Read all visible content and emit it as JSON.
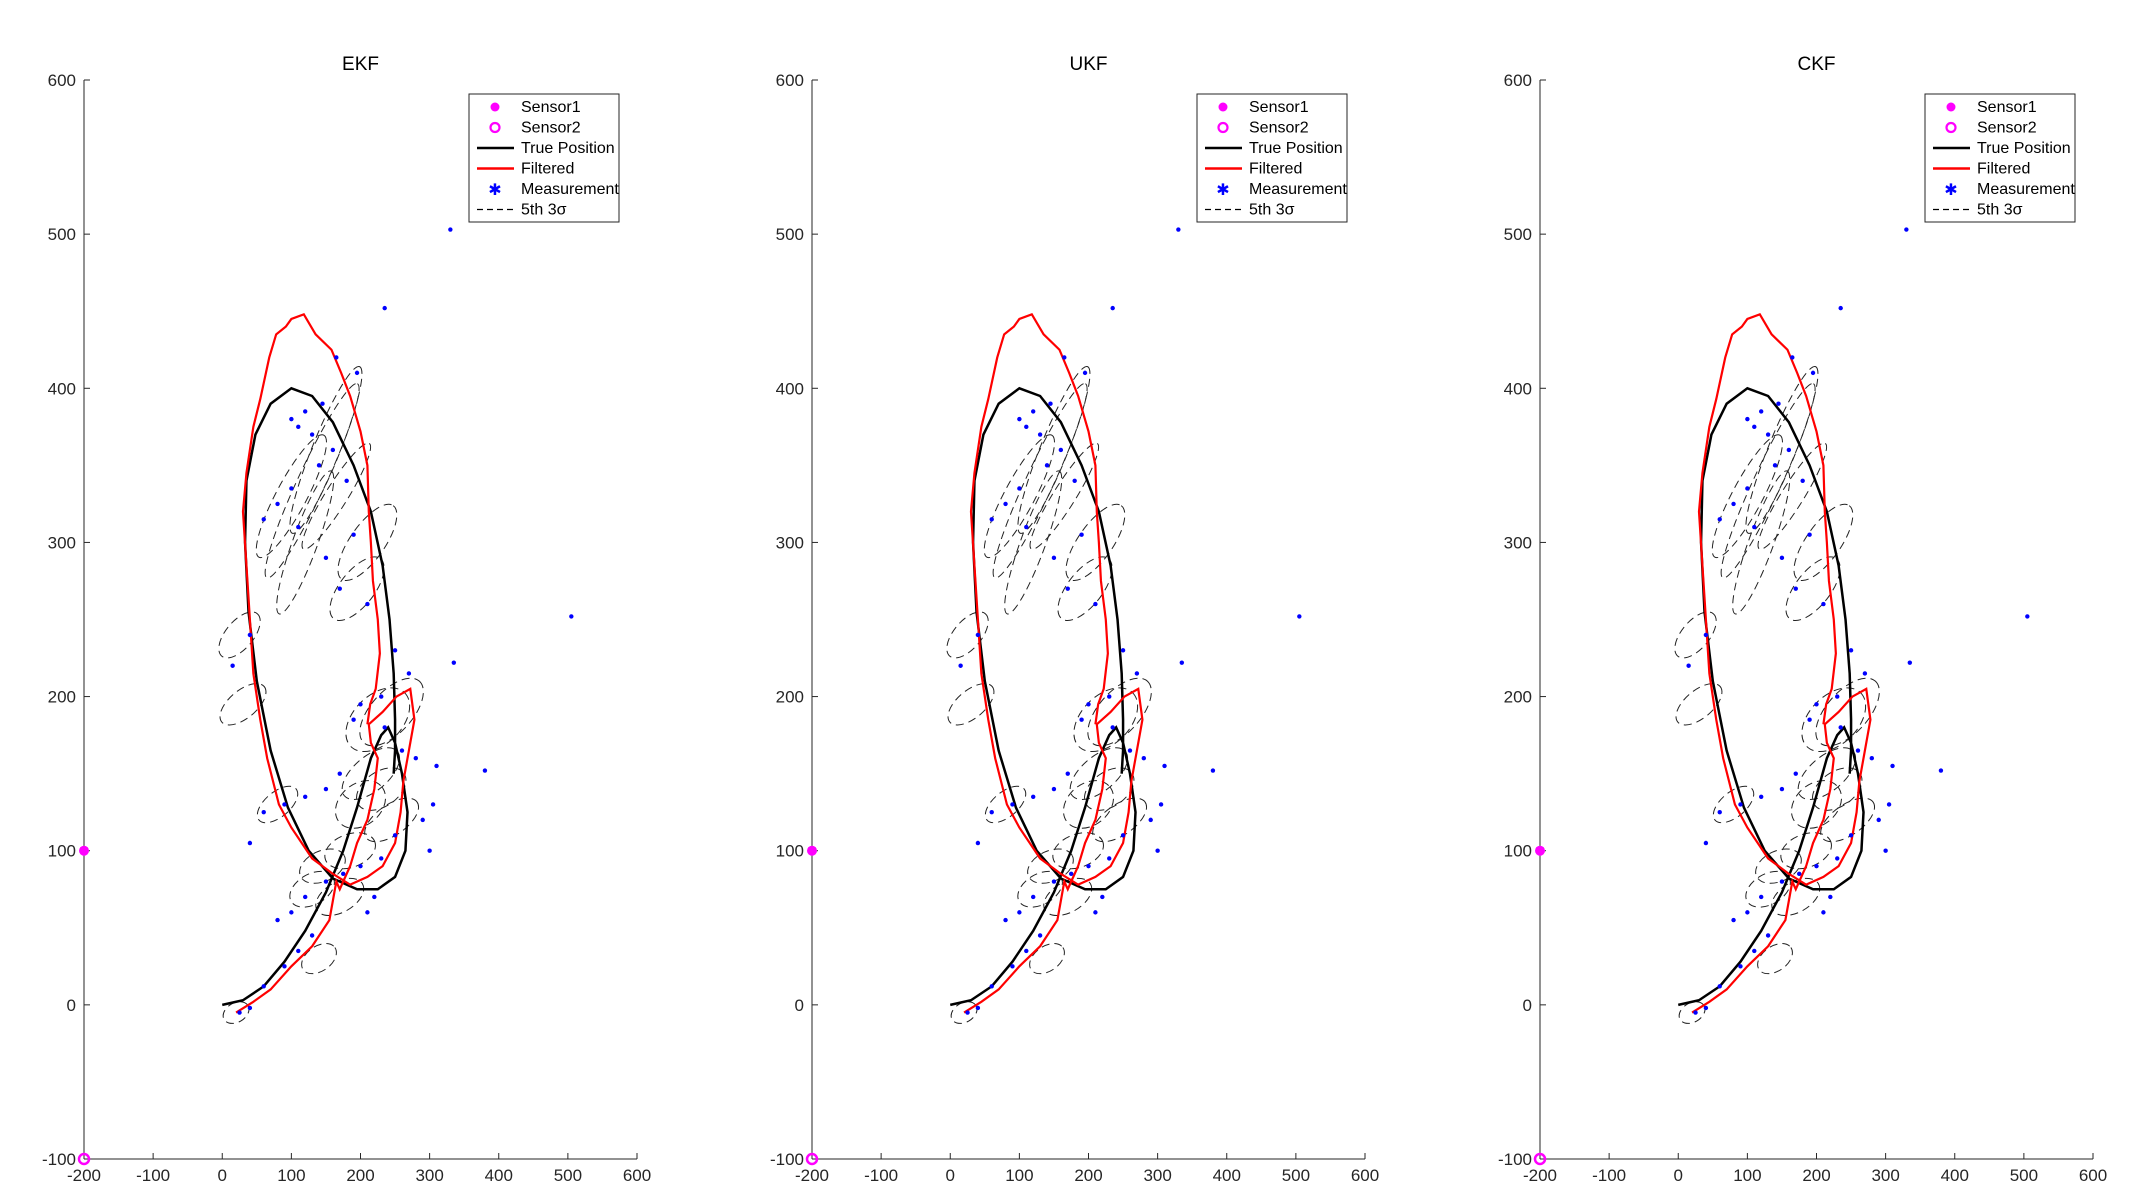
{
  "chart_data": [
    {
      "type": "line",
      "title": "EKF",
      "xlim": [
        -200,
        600
      ],
      "ylim": [
        -100,
        600
      ],
      "xticks": [
        -200,
        -100,
        0,
        100,
        200,
        300,
        400,
        500,
        600
      ],
      "yticks": [
        -100,
        0,
        100,
        200,
        300,
        400,
        500,
        600
      ],
      "legend_position": "top-right"
    },
    {
      "type": "line",
      "title": "UKF",
      "xlim": [
        -200,
        600
      ],
      "ylim": [
        -100,
        600
      ],
      "xticks": [
        -200,
        -100,
        0,
        100,
        200,
        300,
        400,
        500,
        600
      ],
      "yticks": [
        -100,
        0,
        100,
        200,
        300,
        400,
        500,
        600
      ],
      "legend_position": "top-right"
    },
    {
      "type": "line",
      "title": "CKF",
      "xlim": [
        -200,
        600
      ],
      "ylim": [
        -100,
        600
      ],
      "xticks": [
        -200,
        -100,
        0,
        100,
        200,
        300,
        400,
        500,
        600
      ],
      "yticks": [
        -100,
        0,
        100,
        200,
        300,
        400,
        500,
        600
      ],
      "legend_position": "top-right"
    }
  ],
  "legend": [
    {
      "label": "Sensor1",
      "marker": "filled-circle",
      "color": "#ff00ff"
    },
    {
      "label": "Sensor2",
      "marker": "open-circle",
      "color": "#ff00ff"
    },
    {
      "label": "True Position",
      "marker": "line",
      "color": "#000000"
    },
    {
      "label": "Filtered",
      "marker": "line",
      "color": "#ff0000"
    },
    {
      "label": "Measurement",
      "marker": "asterisk",
      "color": "#0000ff"
    },
    {
      "label": "5th 3σ",
      "marker": "dashed-line",
      "color": "#000000"
    }
  ],
  "sensors": {
    "sensor1": {
      "x": -200,
      "y": 100
    },
    "sensor2": {
      "x": -200,
      "y": -100
    }
  },
  "true_path": [
    [
      0,
      0
    ],
    [
      30,
      3
    ],
    [
      60,
      12
    ],
    [
      90,
      28
    ],
    [
      120,
      48
    ],
    [
      150,
      73
    ],
    [
      175,
      100
    ],
    [
      195,
      128
    ],
    [
      215,
      160
    ],
    [
      230,
      175
    ],
    [
      240,
      180
    ],
    [
      250,
      170
    ],
    [
      260,
      150
    ],
    [
      268,
      125
    ],
    [
      265,
      100
    ],
    [
      250,
      83
    ],
    [
      225,
      75
    ],
    [
      195,
      75
    ],
    [
      160,
      82
    ],
    [
      125,
      100
    ],
    [
      95,
      128
    ],
    [
      70,
      165
    ],
    [
      50,
      210
    ],
    [
      38,
      255
    ],
    [
      33,
      300
    ],
    [
      35,
      340
    ],
    [
      48,
      370
    ],
    [
      70,
      390
    ],
    [
      100,
      400
    ],
    [
      130,
      395
    ],
    [
      160,
      378
    ],
    [
      190,
      350
    ],
    [
      215,
      320
    ],
    [
      232,
      285
    ],
    [
      242,
      250
    ],
    [
      248,
      215
    ],
    [
      250,
      185
    ],
    [
      250,
      165
    ],
    [
      248,
      150
    ]
  ],
  "filtered_path": [
    [
      20,
      -5
    ],
    [
      45,
      2
    ],
    [
      70,
      10
    ],
    [
      100,
      25
    ],
    [
      130,
      38
    ],
    [
      155,
      55
    ],
    [
      165,
      80
    ],
    [
      170,
      75
    ],
    [
      185,
      90
    ],
    [
      195,
      105
    ],
    [
      210,
      120
    ],
    [
      220,
      140
    ],
    [
      225,
      160
    ],
    [
      215,
      170
    ],
    [
      212,
      182
    ],
    [
      232,
      190
    ],
    [
      252,
      200
    ],
    [
      272,
      205
    ],
    [
      278,
      185
    ],
    [
      270,
      165
    ],
    [
      262,
      145
    ],
    [
      258,
      125
    ],
    [
      250,
      105
    ],
    [
      232,
      90
    ],
    [
      210,
      83
    ],
    [
      185,
      78
    ],
    [
      160,
      85
    ],
    [
      130,
      95
    ],
    [
      100,
      115
    ],
    [
      82,
      130
    ],
    [
      65,
      160
    ],
    [
      55,
      185
    ],
    [
      45,
      215
    ],
    [
      40,
      250
    ],
    [
      35,
      285
    ],
    [
      30,
      320
    ],
    [
      35,
      345
    ],
    [
      45,
      375
    ],
    [
      55,
      393
    ],
    [
      68,
      420
    ],
    [
      78,
      435
    ],
    [
      92,
      440
    ],
    [
      100,
      445
    ],
    [
      118,
      448
    ],
    [
      135,
      435
    ],
    [
      158,
      425
    ],
    [
      172,
      410
    ],
    [
      185,
      395
    ],
    [
      200,
      372
    ],
    [
      210,
      350
    ],
    [
      212,
      320
    ],
    [
      215,
      300
    ],
    [
      218,
      275
    ],
    [
      225,
      250
    ],
    [
      228,
      228
    ],
    [
      222,
      205
    ],
    [
      214,
      195
    ],
    [
      210,
      182
    ]
  ],
  "ellipses": [
    {
      "cx": 130,
      "cy": 340,
      "rx": 155,
      "ry": 20,
      "rot": -65
    },
    {
      "cx": 150,
      "cy": 360,
      "rx": 130,
      "ry": 20,
      "rot": -68
    },
    {
      "cx": 120,
      "cy": 300,
      "rx": 110,
      "ry": 18,
      "rot": -70
    },
    {
      "cx": 100,
      "cy": 330,
      "rx": 100,
      "ry": 22,
      "rot": -62
    },
    {
      "cx": 165,
      "cy": 330,
      "rx": 90,
      "ry": 16,
      "rot": -58
    },
    {
      "cx": 210,
      "cy": 300,
      "rx": 65,
      "ry": 25,
      "rot": -55
    },
    {
      "cx": 195,
      "cy": 270,
      "rx": 55,
      "ry": 25,
      "rot": -52
    },
    {
      "cx": 225,
      "cy": 185,
      "rx": 55,
      "ry": 35,
      "rot": -45
    },
    {
      "cx": 245,
      "cy": 190,
      "rx": 60,
      "ry": 30,
      "rot": -48
    },
    {
      "cx": 215,
      "cy": 150,
      "rx": 50,
      "ry": 25,
      "rot": -40
    },
    {
      "cx": 230,
      "cy": 140,
      "rx": 40,
      "ry": 25,
      "rot": -35
    },
    {
      "cx": 245,
      "cy": 120,
      "rx": 45,
      "ry": 22,
      "rot": -35
    },
    {
      "cx": 200,
      "cy": 130,
      "rx": 40,
      "ry": 30,
      "rot": -40
    },
    {
      "cx": 185,
      "cy": 100,
      "rx": 38,
      "ry": 24,
      "rot": -20
    },
    {
      "cx": 145,
      "cy": 90,
      "rx": 35,
      "ry": 22,
      "rot": -25
    },
    {
      "cx": 130,
      "cy": 75,
      "rx": 35,
      "ry": 22,
      "rot": -30
    },
    {
      "cx": 170,
      "cy": 70,
      "rx": 38,
      "ry": 22,
      "rot": -30
    },
    {
      "cx": 140,
      "cy": 30,
      "rx": 28,
      "ry": 18,
      "rot": -35
    },
    {
      "cx": 20,
      "cy": -5,
      "rx": 20,
      "ry": 14,
      "rot": -30
    },
    {
      "cx": 30,
      "cy": 195,
      "rx": 40,
      "ry": 20,
      "rot": -40
    },
    {
      "cx": 25,
      "cy": 240,
      "rx": 40,
      "ry": 20,
      "rot": -50
    },
    {
      "cx": 80,
      "cy": 130,
      "rx": 35,
      "ry": 18,
      "rot": -40
    }
  ],
  "measurements": [
    [
      330,
      503
    ],
    [
      235,
      452
    ],
    [
      165,
      420
    ],
    [
      195,
      410
    ],
    [
      145,
      390
    ],
    [
      120,
      385
    ],
    [
      100,
      380
    ],
    [
      110,
      375
    ],
    [
      130,
      370
    ],
    [
      160,
      360
    ],
    [
      140,
      350
    ],
    [
      180,
      340
    ],
    [
      100,
      335
    ],
    [
      80,
      325
    ],
    [
      60,
      315
    ],
    [
      110,
      310
    ],
    [
      190,
      305
    ],
    [
      150,
      290
    ],
    [
      170,
      270
    ],
    [
      210,
      260
    ],
    [
      40,
      240
    ],
    [
      15,
      220
    ],
    [
      505,
      252
    ],
    [
      335,
      222
    ],
    [
      250,
      230
    ],
    [
      270,
      215
    ],
    [
      230,
      200
    ],
    [
      200,
      195
    ],
    [
      190,
      185
    ],
    [
      235,
      180
    ],
    [
      260,
      165
    ],
    [
      280,
      160
    ],
    [
      310,
      155
    ],
    [
      380,
      152
    ],
    [
      170,
      150
    ],
    [
      150,
      140
    ],
    [
      120,
      135
    ],
    [
      90,
      130
    ],
    [
      60,
      125
    ],
    [
      40,
      105
    ],
    [
      250,
      110
    ],
    [
      300,
      100
    ],
    [
      200,
      90
    ],
    [
      175,
      85
    ],
    [
      150,
      80
    ],
    [
      120,
      70
    ],
    [
      100,
      60
    ],
    [
      80,
      55
    ],
    [
      130,
      45
    ],
    [
      110,
      35
    ],
    [
      90,
      25
    ],
    [
      60,
      12
    ],
    [
      40,
      -2
    ],
    [
      25,
      -5
    ],
    [
      305,
      130
    ],
    [
      290,
      120
    ],
    [
      220,
      70
    ],
    [
      210,
      60
    ],
    [
      230,
      95
    ]
  ]
}
